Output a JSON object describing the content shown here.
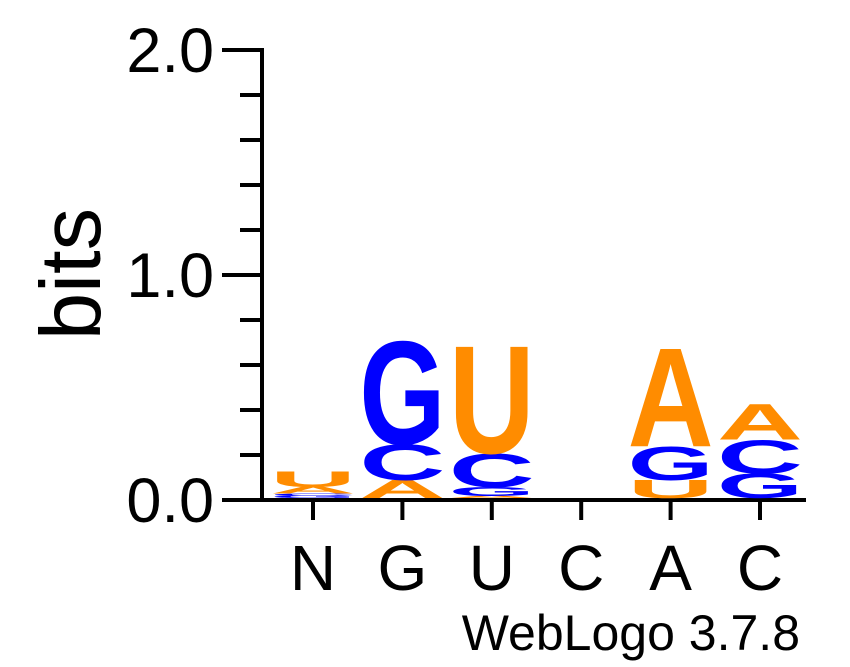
{
  "chart_data": {
    "type": "bar",
    "ylabel": "bits",
    "ylim": [
      0,
      2
    ],
    "yticks": [
      {
        "value": 0,
        "label": "0.0"
      },
      {
        "value": 1,
        "label": "1.0"
      },
      {
        "value": 2,
        "label": "2.0"
      }
    ],
    "yminor_step": 0.2,
    "categories": [
      "N",
      "G",
      "U",
      "C",
      "A",
      "C"
    ],
    "stacks": [
      [
        {
          "letter": "G",
          "bits": 0.01
        },
        {
          "letter": "C",
          "bits": 0.01
        },
        {
          "letter": "A",
          "bits": 0.03
        },
        {
          "letter": "U",
          "bits": 0.07
        }
      ],
      [
        {
          "letter": "A",
          "bits": 0.08
        },
        {
          "letter": "C",
          "bits": 0.16
        },
        {
          "letter": "G",
          "bits": 0.46
        }
      ],
      [
        {
          "letter": "A",
          "bits": 0.01
        },
        {
          "letter": "G",
          "bits": 0.04
        },
        {
          "letter": "C",
          "bits": 0.15
        },
        {
          "letter": "U",
          "bits": 0.48
        }
      ],
      [],
      [
        {
          "letter": "U",
          "bits": 0.08
        },
        {
          "letter": "G",
          "bits": 0.15
        },
        {
          "letter": "A",
          "bits": 0.44
        }
      ],
      [
        {
          "letter": "G",
          "bits": 0.11
        },
        {
          "letter": "C",
          "bits": 0.15
        },
        {
          "letter": "A",
          "bits": 0.16
        }
      ]
    ],
    "colors": {
      "A": "#FF8C00",
      "U": "#FF8C00",
      "G": "#0000FF",
      "C": "#0000FF",
      "axis": "#000000"
    },
    "credit": "WebLogo 3.7.8"
  }
}
